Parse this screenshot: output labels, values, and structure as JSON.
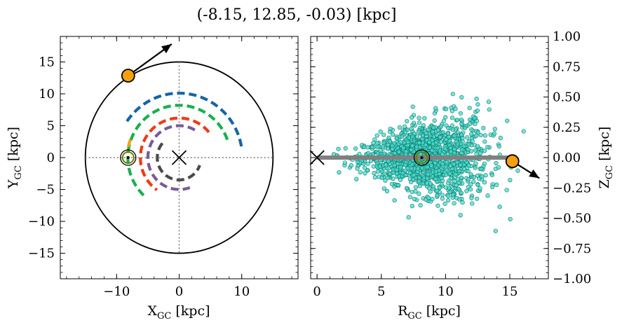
{
  "chart_data": [
    {
      "type": "scatter",
      "panel": "left",
      "title": "(-8.15, 12.85, -0.03) [kpc]",
      "xlabel": "X",
      "xlabel_sub": "GC",
      "xlabel_unit": " [kpc]",
      "ylabel": "Y",
      "ylabel_sub": "GC",
      "ylabel_unit": " [kpc]",
      "xlim": [
        -19,
        19
      ],
      "ylim": [
        -19,
        19
      ],
      "xticks": [
        -10,
        0,
        10
      ],
      "xtick_labels": [
        "−10",
        "0",
        "10"
      ],
      "yticks": [
        15,
        10,
        5,
        0,
        -5,
        -10,
        -15
      ],
      "ytick_labels": [
        "15",
        "10",
        "5",
        "0",
        "−5",
        "−10",
        "−15"
      ],
      "circle_radius": 15,
      "galactic_center": [
        0,
        0
      ],
      "sun": [
        -8.15,
        0
      ],
      "object": [
        -8.15,
        12.85
      ],
      "velocity_arrow_end": [
        -1.2,
        17.8
      ],
      "spiral_arms": [
        {
          "color": "#1565a8",
          "radius": 10.1,
          "start_deg": 10,
          "end_deg": 148
        },
        {
          "color": "#16b14e",
          "radius": 8.2,
          "start_deg": 20,
          "end_deg": 230
        },
        {
          "color": "#ef3b13",
          "radius": 6.2,
          "start_deg": 40,
          "end_deg": 235
        },
        {
          "color": "#7a5a9a",
          "radius": 5.0,
          "start_deg": 60,
          "end_deg": 290
        },
        {
          "color": "#4a4a4a",
          "radius": 3.5,
          "start_deg": 140,
          "end_deg": 340
        },
        {
          "color": "#f4a20c",
          "radius": 8.3,
          "start_deg": 160,
          "end_deg": 175
        }
      ],
      "colors": {
        "circle": "#000000",
        "object": "#f5a00f",
        "sun_ring": "#6b7d00"
      }
    },
    {
      "type": "scatter",
      "panel": "right",
      "xlabel": "R",
      "xlabel_sub": "GC",
      "xlabel_unit": " [kpc]",
      "ylabel": "Z",
      "ylabel_sub": "GC",
      "ylabel_unit": " [kpc]",
      "xlim": [
        -0.5,
        18
      ],
      "ylim": [
        -1.0,
        1.0
      ],
      "xticks": [
        0,
        5,
        10,
        15
      ],
      "xtick_labels": [
        "0",
        "5",
        "10",
        "15"
      ],
      "yticks": [
        1.0,
        0.75,
        0.5,
        0.25,
        0.0,
        -0.25,
        -0.5,
        -0.75,
        -1.0
      ],
      "ytick_labels": [
        "1.00",
        "0.75",
        "0.50",
        "0.25",
        "0.00",
        "−0.25",
        "−0.50",
        "−0.75",
        "−1.00"
      ],
      "galactic_center": [
        0,
        0
      ],
      "sun": [
        8.15,
        0.0
      ],
      "object": [
        15.2,
        -0.03
      ],
      "velocity_arrow_end": [
        17.3,
        -0.17
      ],
      "disk_line": [
        0,
        15.2
      ],
      "star_cloud": {
        "center_r": 8.5,
        "spread_r": 2.4,
        "spread_z": 0.14,
        "count": 1400
      },
      "colors": {
        "stars": "#40e0d0",
        "disk": "#808080",
        "object": "#f5a00f"
      }
    }
  ]
}
